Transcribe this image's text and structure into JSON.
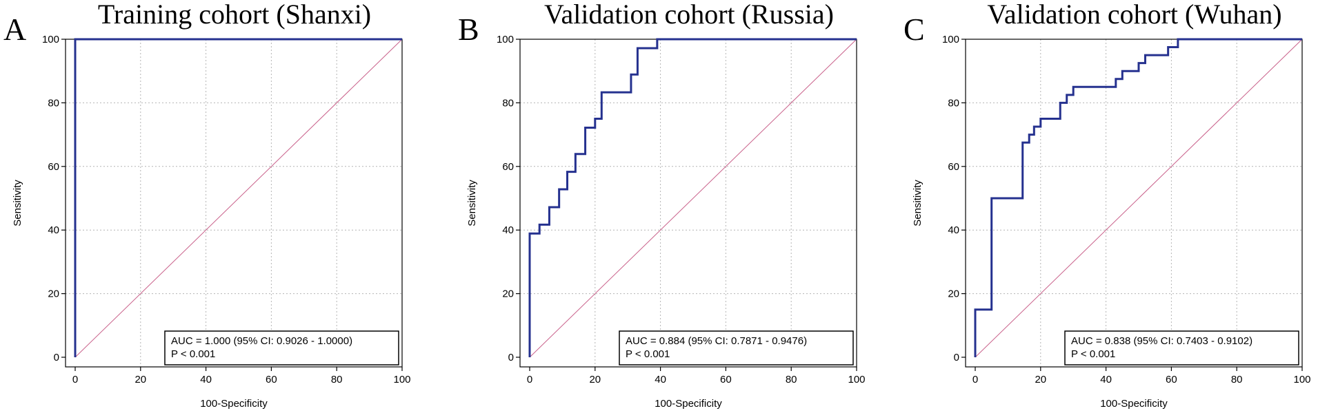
{
  "chart_data": [
    {
      "type": "line",
      "panel_letter": "A",
      "title": "Training cohort (Shanxi)",
      "xlabel": "100-Specificity",
      "ylabel": "Sensitivity",
      "xlim": [
        0,
        100
      ],
      "ylim": [
        0,
        100
      ],
      "xticks": [
        0,
        20,
        40,
        60,
        80,
        100
      ],
      "yticks": [
        0,
        20,
        40,
        60,
        80,
        100
      ],
      "grid": true,
      "legend_position": "bottom-right",
      "annotation": [
        "AUC = 1.000 (95% CI: 0.9026 - 1.0000)",
        "P < 0.001"
      ],
      "series": [
        {
          "name": "ROC curve",
          "color": "#25318f",
          "x": [
            0,
            0,
            100
          ],
          "y": [
            0,
            100,
            100
          ]
        },
        {
          "name": "Reference line",
          "color": "#c9608a",
          "x": [
            0,
            100
          ],
          "y": [
            0,
            100
          ]
        }
      ]
    },
    {
      "type": "line",
      "panel_letter": "B",
      "title": "Validation cohort (Russia)",
      "xlabel": "100-Specificity",
      "ylabel": "Sensitivity",
      "xlim": [
        0,
        100
      ],
      "ylim": [
        0,
        100
      ],
      "xticks": [
        0,
        20,
        40,
        60,
        80,
        100
      ],
      "yticks": [
        0,
        20,
        40,
        60,
        80,
        100
      ],
      "grid": true,
      "legend_position": "bottom-right",
      "annotation": [
        "AUC = 0.884 (95% CI: 0.7871 - 0.9476)",
        "P < 0.001"
      ],
      "series": [
        {
          "name": "ROC curve",
          "color": "#25318f",
          "x": [
            0,
            0,
            3,
            3,
            6,
            6,
            9,
            9,
            11.5,
            11.5,
            14,
            14,
            17,
            17,
            20,
            20,
            22,
            22,
            31,
            31,
            33,
            33,
            39,
            39,
            100
          ],
          "y": [
            0,
            38.9,
            38.9,
            41.7,
            41.7,
            47.2,
            47.2,
            52.8,
            52.8,
            58.3,
            58.3,
            63.9,
            63.9,
            72.2,
            72.2,
            75,
            75,
            83.3,
            83.3,
            88.9,
            88.9,
            97.2,
            97.2,
            100,
            100
          ]
        },
        {
          "name": "Reference line",
          "color": "#c9608a",
          "x": [
            0,
            100
          ],
          "y": [
            0,
            100
          ]
        }
      ]
    },
    {
      "type": "line",
      "panel_letter": "C",
      "title": "Validation cohort (Wuhan)",
      "xlabel": "100-Specificity",
      "ylabel": "Sensitivity",
      "xlim": [
        0,
        100
      ],
      "ylim": [
        0,
        100
      ],
      "xticks": [
        0,
        20,
        40,
        60,
        80,
        100
      ],
      "yticks": [
        0,
        20,
        40,
        60,
        80,
        100
      ],
      "grid": true,
      "legend_position": "bottom-right",
      "annotation": [
        "AUC = 0.838 (95% CI: 0.7403 - 0.9102)",
        "P < 0.001"
      ],
      "series": [
        {
          "name": "ROC curve",
          "color": "#25318f",
          "x": [
            0,
            0,
            5,
            5,
            14.5,
            14.5,
            16.5,
            16.5,
            18,
            18,
            20,
            20,
            22,
            22,
            26,
            26,
            28,
            28,
            30,
            30,
            43,
            43,
            45,
            45,
            50,
            50,
            52,
            52,
            59,
            59,
            62,
            62,
            100
          ],
          "y": [
            0,
            15,
            15,
            50,
            50,
            67.5,
            67.5,
            70,
            70,
            72.5,
            72.5,
            75,
            75,
            75,
            75,
            80,
            80,
            82.5,
            82.5,
            85,
            85,
            87.5,
            87.5,
            90,
            90,
            92.5,
            92.5,
            95,
            95,
            97.5,
            97.5,
            100,
            100
          ]
        },
        {
          "name": "Reference line",
          "color": "#c9608a",
          "x": [
            0,
            100
          ],
          "y": [
            0,
            100
          ]
        }
      ]
    }
  ]
}
